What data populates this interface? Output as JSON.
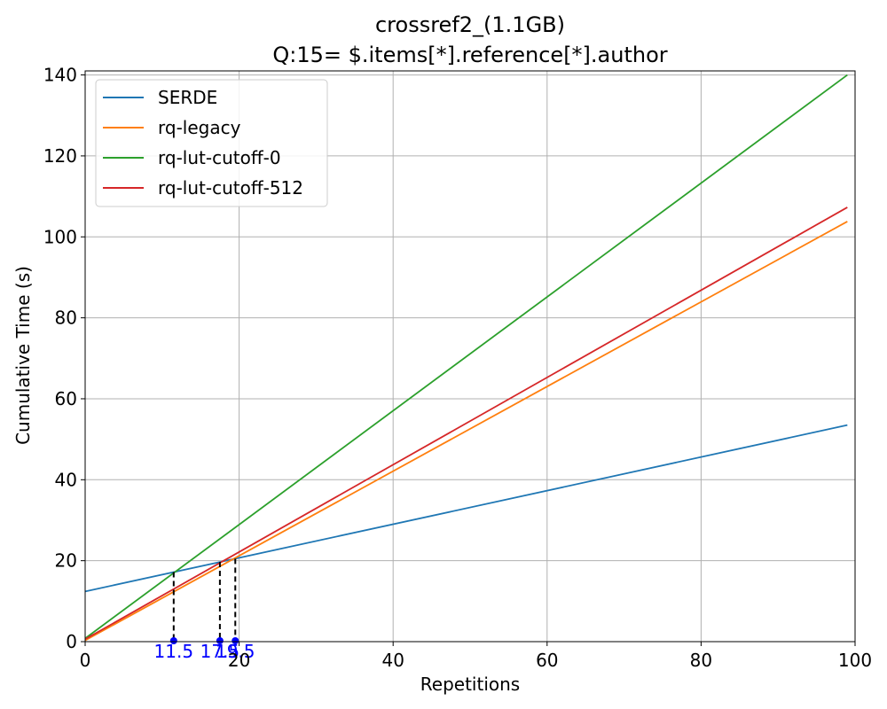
{
  "chart_data": {
    "type": "line",
    "title": [
      "crossref2_(1.1GB)",
      "Q:15= $.items[*].reference[*].author"
    ],
    "xlabel": "Repetitions",
    "ylabel": "Cumulative Time (s)",
    "xlim": [
      0,
      100
    ],
    "ylim": [
      0,
      141
    ],
    "xticks": [
      0,
      20,
      40,
      60,
      80,
      100
    ],
    "yticks": [
      0,
      20,
      40,
      60,
      80,
      100,
      120,
      140
    ],
    "grid": true,
    "legend_position": "top-left",
    "series": [
      {
        "name": "SERDE",
        "color": "#1f77b4",
        "x": [
          0,
          99
        ],
        "y": [
          12.4,
          53.5
        ]
      },
      {
        "name": "rq-legacy",
        "color": "#ff7f0e",
        "x": [
          0,
          99
        ],
        "y": [
          0.3,
          103.8
        ]
      },
      {
        "name": "rq-lut-cutoff-0",
        "color": "#2ca02c",
        "x": [
          0,
          99
        ],
        "y": [
          0.8,
          140.0
        ]
      },
      {
        "name": "rq-lut-cutoff-512",
        "color": "#d62728",
        "x": [
          0,
          99
        ],
        "y": [
          0.6,
          107.3
        ]
      }
    ],
    "annotations": [
      {
        "x": 11.5,
        "y": 17.2,
        "label": "11.5",
        "color": "#0000ff"
      },
      {
        "x": 17.5,
        "y": 19.7,
        "label": "17.5",
        "color": "#0000ff"
      },
      {
        "x": 19.5,
        "y": 20.5,
        "label": "19.5",
        "color": "#0000ff"
      }
    ]
  }
}
